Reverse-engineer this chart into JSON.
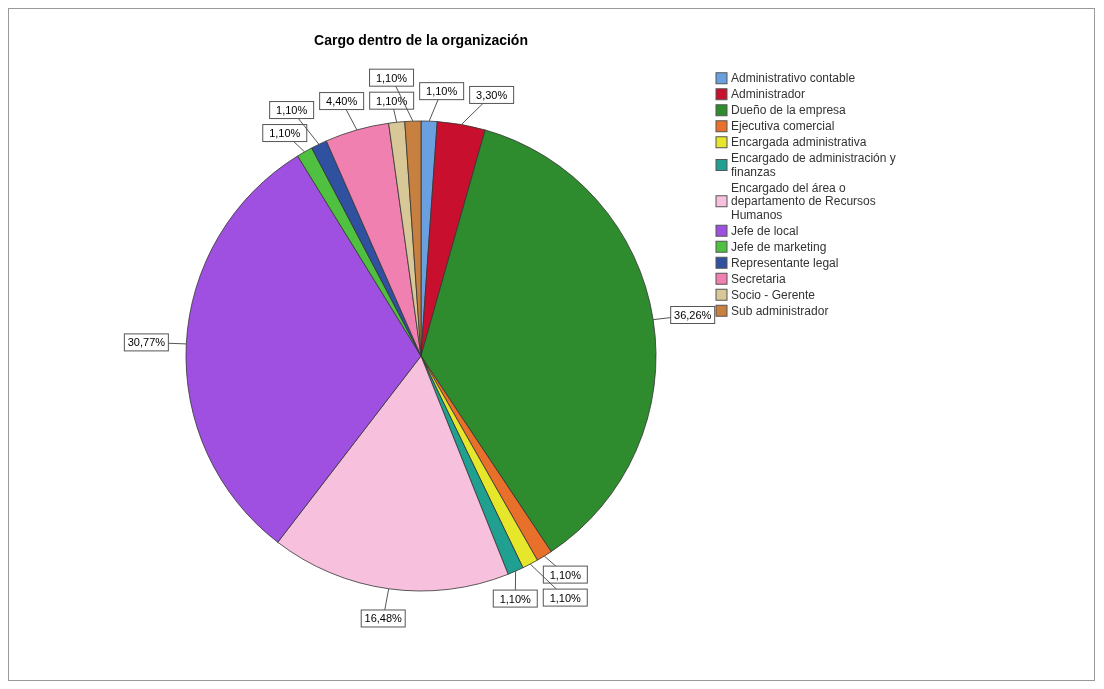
{
  "chart_data": {
    "type": "pie",
    "title": "Cargo dentro de la organización",
    "categories": [
      "Administrativo contable",
      "Administrador",
      "Dueño de la empresa",
      "Ejecutiva comercial",
      "Encargada administrativa",
      "Encargado de administración y finanzas",
      "Encargado del área o departamento de Recursos Humanos",
      "Jefe de local",
      "Jefe de marketing",
      "Representante legal",
      "Secretaria",
      "Socio - Gerente",
      "Sub administrador"
    ],
    "values": [
      1.1,
      3.3,
      36.26,
      1.1,
      1.1,
      1.1,
      16.48,
      30.77,
      1.1,
      1.1,
      4.4,
      1.1,
      1.1
    ],
    "value_labels": [
      "1,10%",
      "3,30%",
      "36,26%",
      "1,10%",
      "1,10%",
      "1,10%",
      "16,48%",
      "30,77%",
      "1,10%",
      "1,10%",
      "4,40%",
      "1,10%",
      "1,10%"
    ],
    "colors": [
      "#6a9fe0",
      "#c8102e",
      "#2e8b2e",
      "#e8702a",
      "#e6e62a",
      "#20a090",
      "#f7c0dd",
      "#a050e0",
      "#50c040",
      "#3050a0",
      "#f080b0",
      "#d8c898",
      "#c88040"
    ],
    "legend": "right"
  }
}
